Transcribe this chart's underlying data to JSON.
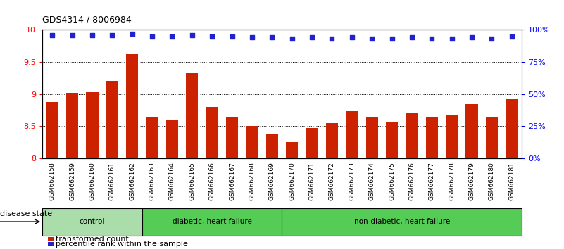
{
  "title": "GDS4314 / 8006984",
  "samples": [
    "GSM662158",
    "GSM662159",
    "GSM662160",
    "GSM662161",
    "GSM662162",
    "GSM662163",
    "GSM662164",
    "GSM662165",
    "GSM662166",
    "GSM662167",
    "GSM662168",
    "GSM662169",
    "GSM662170",
    "GSM662171",
    "GSM662172",
    "GSM662173",
    "GSM662174",
    "GSM662175",
    "GSM662176",
    "GSM662177",
    "GSM662178",
    "GSM662179",
    "GSM662180",
    "GSM662181"
  ],
  "bar_values": [
    8.88,
    9.02,
    9.03,
    9.2,
    9.62,
    8.63,
    8.6,
    9.33,
    8.8,
    8.65,
    8.5,
    8.37,
    8.25,
    8.47,
    8.55,
    8.73,
    8.63,
    8.57,
    8.7,
    8.65,
    8.68,
    8.84,
    8.63,
    8.92
  ],
  "percentile_values": [
    96,
    96,
    96,
    96,
    97,
    95,
    95,
    96,
    95,
    95,
    94,
    94,
    93,
    94,
    93,
    94,
    93,
    93,
    94,
    93,
    93,
    94,
    93,
    95
  ],
  "bar_color": "#cc2200",
  "percentile_color": "#2222cc",
  "ylim": [
    8.0,
    10.0
  ],
  "yticks": [
    8.0,
    8.5,
    9.0,
    9.5,
    10.0
  ],
  "ytick_labels": [
    "8",
    "8.5",
    "9",
    "9.5",
    "10"
  ],
  "y2lim": [
    0,
    100
  ],
  "y2ticks": [
    0,
    25,
    50,
    75,
    100
  ],
  "y2ticklabels": [
    "0%",
    "25%",
    "50%",
    "75%",
    "100%"
  ],
  "groups": [
    {
      "label": "control",
      "start": 0,
      "end": 5,
      "color": "#aaddaa"
    },
    {
      "label": "diabetic, heart failure",
      "start": 5,
      "end": 12,
      "color": "#55cc55"
    },
    {
      "label": "non-diabetic, heart failure",
      "start": 12,
      "end": 24,
      "color": "#55cc55"
    }
  ],
  "xtick_bg_color": "#cccccc",
  "disease_state_label": "disease state",
  "legend1_label": "transformed count",
  "legend2_label": "percentile rank within the sample"
}
